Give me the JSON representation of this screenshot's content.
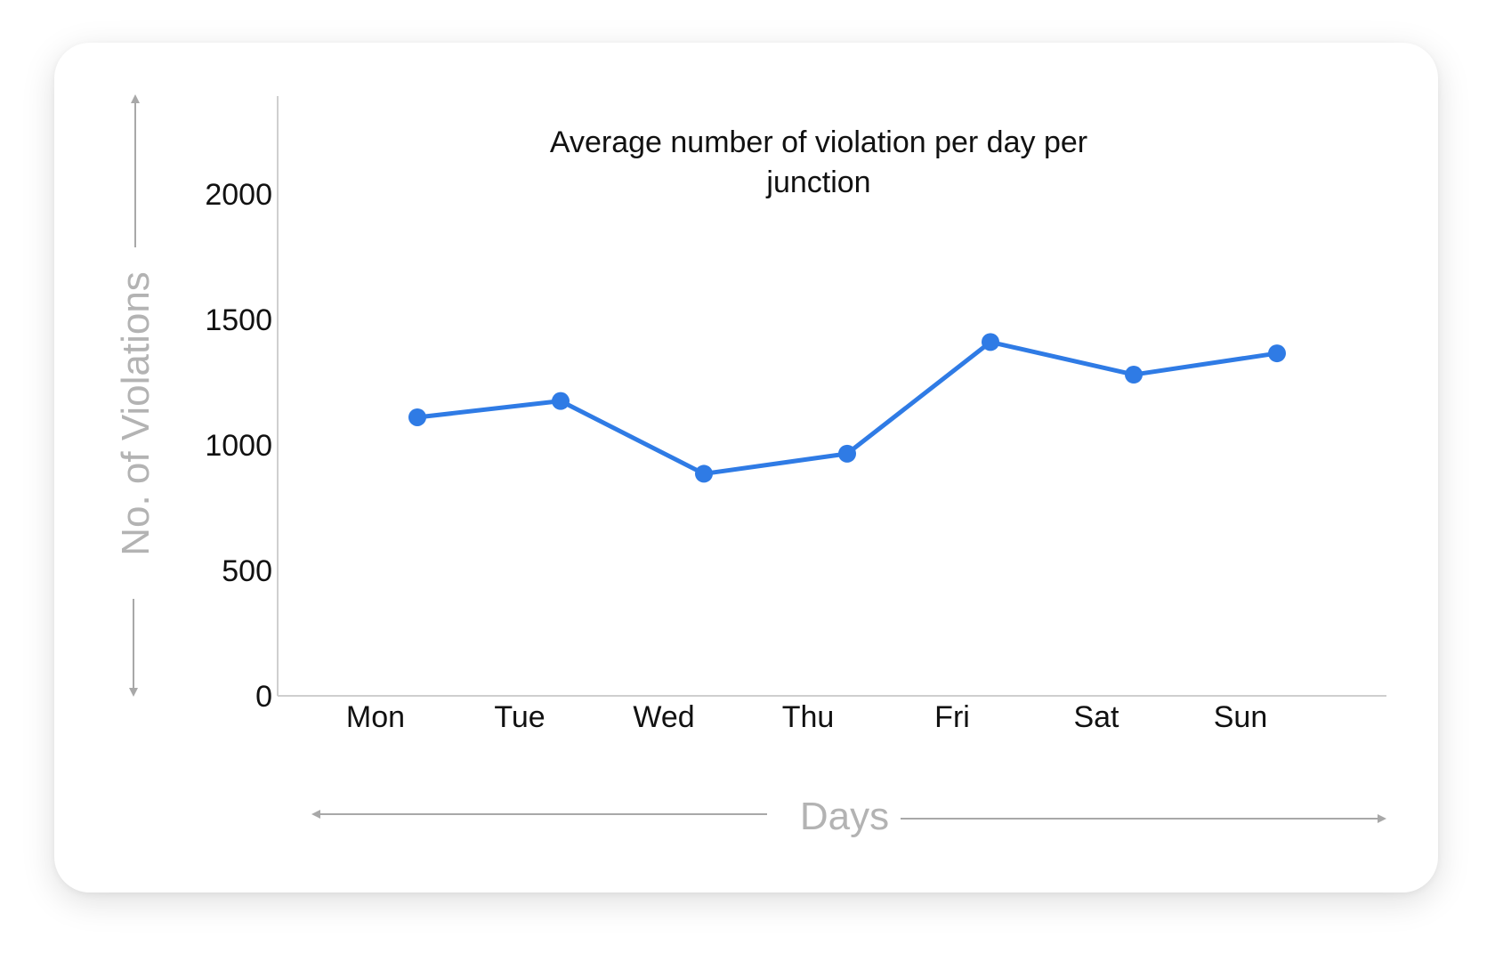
{
  "chart_data": {
    "type": "line",
    "title_lines": [
      "Average number of violation per day per",
      "junction"
    ],
    "xlabel": "Days",
    "ylabel": "No. of Violations",
    "categories": [
      "Mon",
      "Tue",
      "Wed",
      "Thu",
      "Fri",
      "Sat",
      "Sun"
    ],
    "values": [
      1110,
      1175,
      885,
      965,
      1410,
      1280,
      1365
    ],
    "yticks": [
      "0",
      "500",
      "1000",
      "1500",
      "2000"
    ],
    "ytick_values": [
      0,
      500,
      1000,
      1500,
      2000
    ],
    "ylim": [
      0,
      2400
    ],
    "grid": false,
    "legend": "none",
    "line_color": "#2f7be5",
    "axis_color": "#cfcfcf",
    "axis_label_color": "#b3b3b3",
    "axis_arrow_color": "#a8a8a8"
  }
}
